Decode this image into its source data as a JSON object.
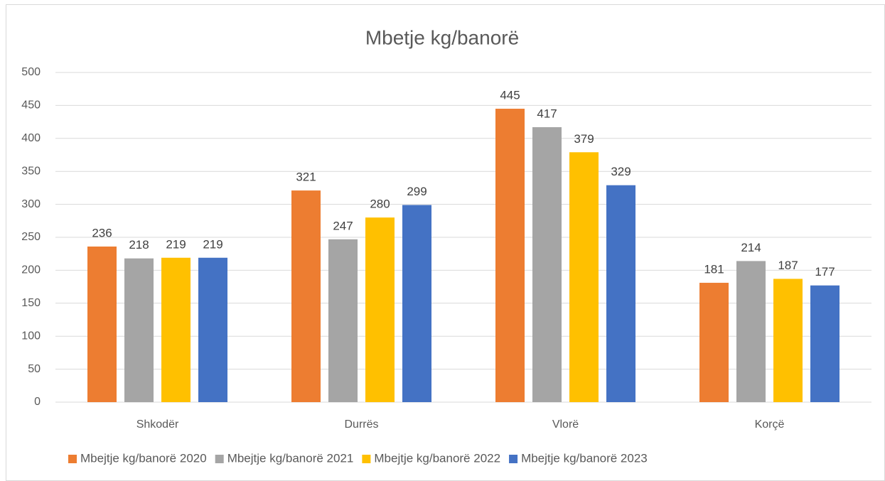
{
  "chart_data": {
    "type": "bar",
    "title": "Mbetje kg/banorë",
    "categories": [
      "Shkodër",
      "Durrës",
      "Vlorë",
      "Korçë"
    ],
    "series": [
      {
        "name": "Mbejtje kg/banorë 2020",
        "color": "#ed7d31",
        "values": [
          236,
          321,
          445,
          181
        ]
      },
      {
        "name": "Mbejtje kg/banorë 2021",
        "color": "#a5a5a5",
        "values": [
          218,
          247,
          417,
          214
        ]
      },
      {
        "name": "Mbejtje kg/banorë 2022",
        "color": "#ffc000",
        "values": [
          219,
          280,
          379,
          187
        ]
      },
      {
        "name": "Mbejtje kg/banorë 2023",
        "color": "#4472c4",
        "values": [
          219,
          299,
          329,
          177
        ]
      }
    ],
    "ylim": [
      0,
      500
    ],
    "yticks": [
      0,
      50,
      100,
      150,
      200,
      250,
      300,
      350,
      400,
      450,
      500
    ],
    "grid": true,
    "legend": "bottom"
  }
}
